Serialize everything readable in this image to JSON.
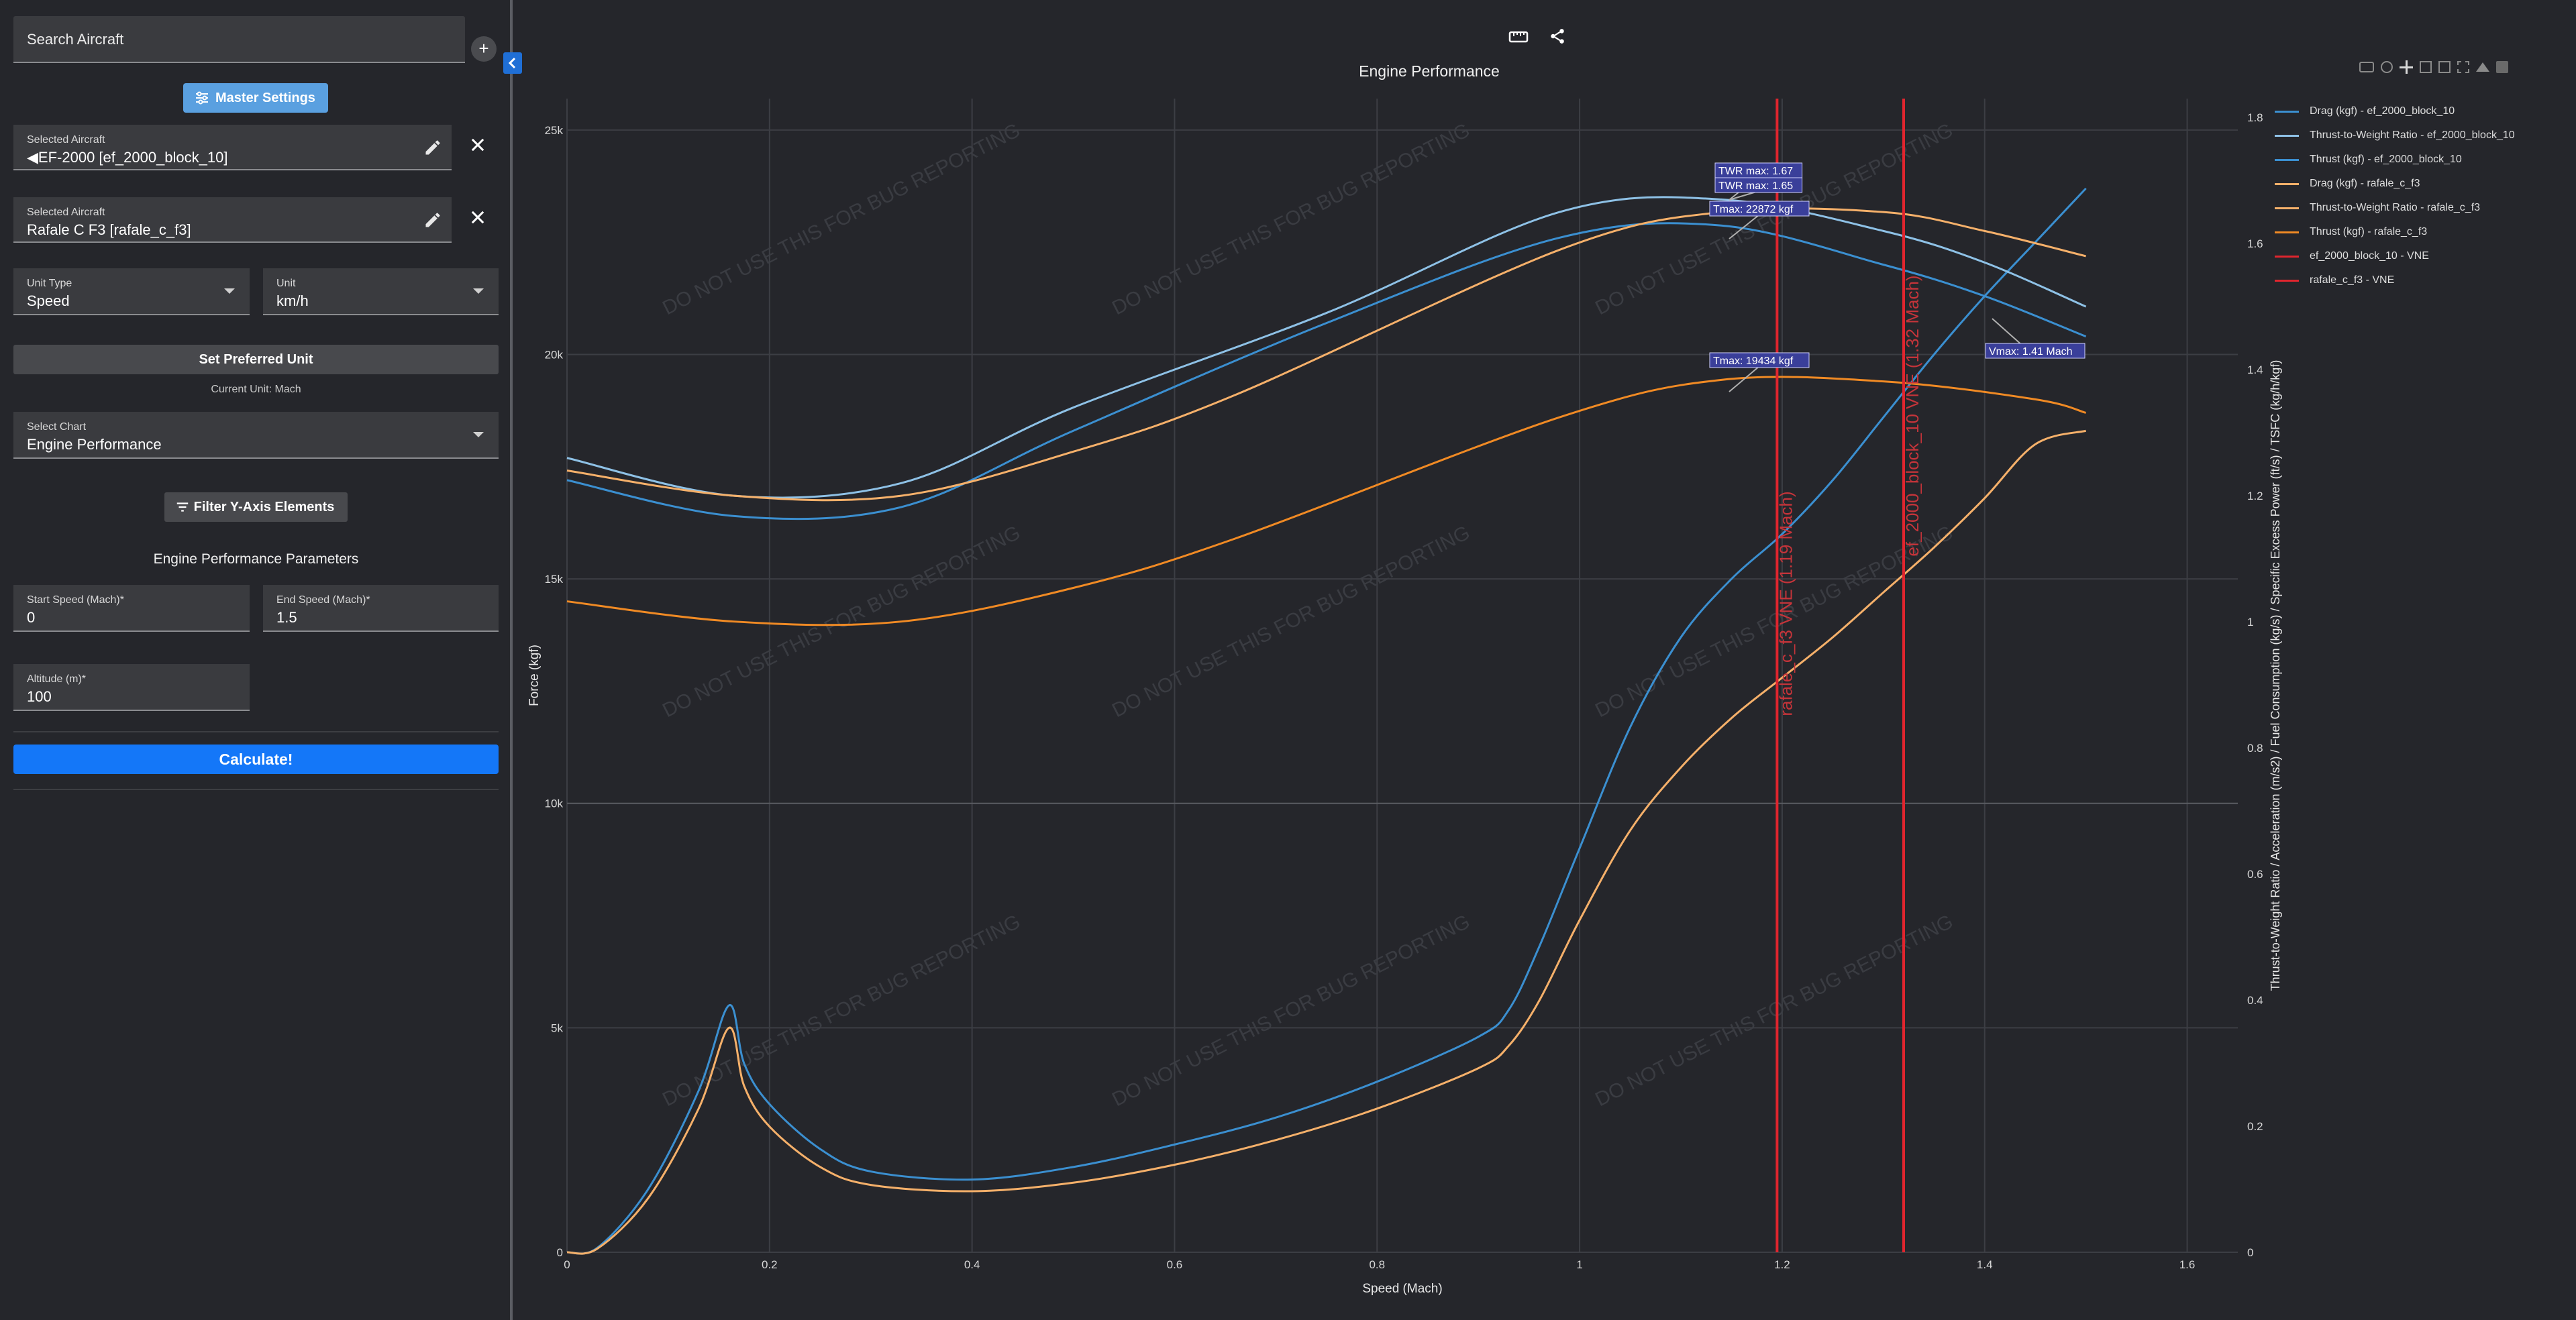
{
  "sidebar": {
    "search_placeholder": "Search Aircraft",
    "add_label": "+",
    "collapse_label": "<",
    "master_settings_label": "Master Settings",
    "aircraft": [
      {
        "label": "Selected Aircraft",
        "value": "◀EF-2000 [ef_2000_block_10]"
      },
      {
        "label": "Selected Aircraft",
        "value": "Rafale C F3 [rafale_c_f3]"
      }
    ],
    "unit_type": {
      "label": "Unit Type",
      "value": "Speed"
    },
    "unit": {
      "label": "Unit",
      "value": "km/h"
    },
    "set_preferred_label": "Set Preferred Unit",
    "current_unit_text": "Current Unit: Mach",
    "select_chart": {
      "label": "Select Chart",
      "value": "Engine Performance"
    },
    "filter_label": "Filter Y-Axis Elements",
    "params_title": "Engine Performance Parameters",
    "start_speed": {
      "label": "Start Speed (Mach)*",
      "value": "0"
    },
    "end_speed": {
      "label": "End Speed (Mach)*",
      "value": "1.5"
    },
    "altitude": {
      "label": "Altitude (m)*",
      "value": "100"
    },
    "calculate_label": "Calculate!"
  },
  "toolbar": {
    "icons": [
      "ruler-icon",
      "share-icon"
    ],
    "plot_modebar": [
      "camera-icon",
      "zoom-icon",
      "pan-icon",
      "zoom-in-icon",
      "zoom-out-icon",
      "autoscale-icon",
      "home-icon",
      "plotly-logo-icon"
    ]
  },
  "watermark": "DO NOT USE THIS FOR BUG REPORTING",
  "colors": {
    "ef": "#3b8fd0",
    "ef_light": "#8ec1e6",
    "rafale": "#f08a24",
    "rafale_light": "#f5b06a",
    "vne": "#e0252e",
    "annotation_bg": "#3a3f9a"
  },
  "chart_data": {
    "type": "line",
    "title": "Engine Performance",
    "xlabel": "Speed (Mach)",
    "ylabel": "Force (kgf)",
    "y2label": "Thrust-to-Weight Ratio / Acceleration (m/s2) / Fuel Consumption (kg/s) / Specific Excess Power (ft/s) / TSFC (kg/h/kgf)",
    "xlim": [
      0,
      1.65
    ],
    "ylim": [
      0,
      25700
    ],
    "y2lim": [
      0,
      1.83
    ],
    "xticks": [
      0,
      0.2,
      0.4,
      0.6,
      0.8,
      1,
      1.2,
      1.4,
      1.6
    ],
    "yticks": [
      0,
      5000,
      10000,
      15000,
      20000,
      25000
    ],
    "yticklabels": [
      "0",
      "5k",
      "10k",
      "15k",
      "20k",
      "25k"
    ],
    "y2ticks": [
      0,
      0.2,
      0.4,
      0.6,
      0.8,
      1,
      1.2,
      1.4,
      1.6,
      1.8
    ],
    "series": [
      {
        "name": "Drag (kgf) - ef_2000_block_10",
        "color": "#3b8fd0",
        "axis": "y",
        "points": [
          [
            0,
            0
          ],
          [
            0.03,
            100
          ],
          [
            0.08,
            1400
          ],
          [
            0.13,
            3600
          ],
          [
            0.16,
            5500
          ],
          [
            0.175,
            4200
          ],
          [
            0.2,
            3300
          ],
          [
            0.25,
            2300
          ],
          [
            0.3,
            1800
          ],
          [
            0.4,
            1620
          ],
          [
            0.5,
            1900
          ],
          [
            0.6,
            2400
          ],
          [
            0.7,
            3000
          ],
          [
            0.8,
            3800
          ],
          [
            0.9,
            4800
          ],
          [
            0.93,
            5400
          ],
          [
            0.96,
            6800
          ],
          [
            1.0,
            9000
          ],
          [
            1.05,
            11700
          ],
          [
            1.1,
            13700
          ],
          [
            1.15,
            15000
          ],
          [
            1.2,
            16000
          ],
          [
            1.25,
            17200
          ],
          [
            1.3,
            18600
          ],
          [
            1.35,
            20000
          ],
          [
            1.4,
            21300
          ],
          [
            1.45,
            22500
          ],
          [
            1.5,
            23700
          ]
        ]
      },
      {
        "name": "Thrust-to-Weight Ratio - ef_2000_block_10",
        "color": "#8ec1e6",
        "axis": "y2",
        "points": [
          [
            0,
            1.26
          ],
          [
            0.165,
            1.2
          ],
          [
            0.33,
            1.22
          ],
          [
            0.5,
            1.34
          ],
          [
            0.75,
            1.49
          ],
          [
            0.98,
            1.65
          ],
          [
            1.14,
            1.67
          ],
          [
            1.3,
            1.62
          ],
          [
            1.4,
            1.57
          ],
          [
            1.5,
            1.5
          ]
        ]
      },
      {
        "name": "Thrust (kgf) - ef_2000_block_10",
        "color": "#3b8fd0",
        "axis": "y",
        "points": [
          [
            0,
            17200
          ],
          [
            0.165,
            16400
          ],
          [
            0.33,
            16600
          ],
          [
            0.5,
            18300
          ],
          [
            0.75,
            20700
          ],
          [
            0.98,
            22600
          ],
          [
            1.14,
            22872
          ],
          [
            1.3,
            22000
          ],
          [
            1.4,
            21300
          ],
          [
            1.5,
            20400
          ]
        ]
      },
      {
        "name": "Drag (kgf) - rafale_c_f3",
        "color": "#f5b06a",
        "axis": "y",
        "points": [
          [
            0,
            0
          ],
          [
            0.03,
            80
          ],
          [
            0.08,
            1200
          ],
          [
            0.13,
            3200
          ],
          [
            0.16,
            5000
          ],
          [
            0.175,
            3700
          ],
          [
            0.2,
            2800
          ],
          [
            0.25,
            1900
          ],
          [
            0.3,
            1500
          ],
          [
            0.4,
            1360
          ],
          [
            0.5,
            1550
          ],
          [
            0.6,
            1950
          ],
          [
            0.7,
            2500
          ],
          [
            0.8,
            3200
          ],
          [
            0.9,
            4100
          ],
          [
            0.93,
            4600
          ],
          [
            0.96,
            5600
          ],
          [
            1.0,
            7400
          ],
          [
            1.05,
            9400
          ],
          [
            1.1,
            10800
          ],
          [
            1.15,
            11900
          ],
          [
            1.2,
            12800
          ],
          [
            1.25,
            13700
          ],
          [
            1.3,
            14700
          ],
          [
            1.35,
            15700
          ],
          [
            1.4,
            16800
          ],
          [
            1.45,
            18000
          ],
          [
            1.5,
            18300
          ]
        ]
      },
      {
        "name": "Thrust-to-Weight Ratio - rafale_c_f3",
        "color": "#f5b06a",
        "axis": "y2",
        "points": [
          [
            0,
            1.24
          ],
          [
            0.165,
            1.2
          ],
          [
            0.33,
            1.2
          ],
          [
            0.5,
            1.27
          ],
          [
            0.66,
            1.36
          ],
          [
            0.98,
            1.59
          ],
          [
            1.14,
            1.65
          ],
          [
            1.3,
            1.65
          ],
          [
            1.4,
            1.62
          ],
          [
            1.5,
            1.58
          ]
        ]
      },
      {
        "name": "Thrust (kgf) - rafale_c_f3",
        "color": "#f08a24",
        "axis": "y",
        "points": [
          [
            0,
            14500
          ],
          [
            0.165,
            14050
          ],
          [
            0.33,
            14050
          ],
          [
            0.5,
            14800
          ],
          [
            0.66,
            15900
          ],
          [
            0.98,
            18600
          ],
          [
            1.14,
            19434
          ],
          [
            1.3,
            19400
          ],
          [
            1.45,
            19000
          ],
          [
            1.5,
            18700
          ]
        ]
      },
      {
        "name": "ef_2000_block_10 - VNE",
        "color": "#e0252e",
        "axis": "vline",
        "x": 1.32,
        "label": "ef_2000_block_10 VNE (1.32 Mach)"
      },
      {
        "name": "rafale_c_f3 - VNE",
        "color": "#e0252e",
        "axis": "vline",
        "x": 1.195,
        "label": "rafale_c_f3 VNE (1.19 Mach)"
      }
    ],
    "annotations": [
      {
        "text": "TWR max: 1.67",
        "x": 1.14,
        "y2": 1.67
      },
      {
        "text": "TWR max: 1.65",
        "x": 1.14,
        "y2": 1.65
      },
      {
        "text": "Tmax: 22872 kgf",
        "x": 1.14,
        "y": 22872
      },
      {
        "text": "Tmax: 19434 kgf",
        "x": 1.14,
        "y": 19434
      },
      {
        "text": "Vmax: 1.41 Mach",
        "x": 1.41,
        "y": 21300
      }
    ]
  }
}
